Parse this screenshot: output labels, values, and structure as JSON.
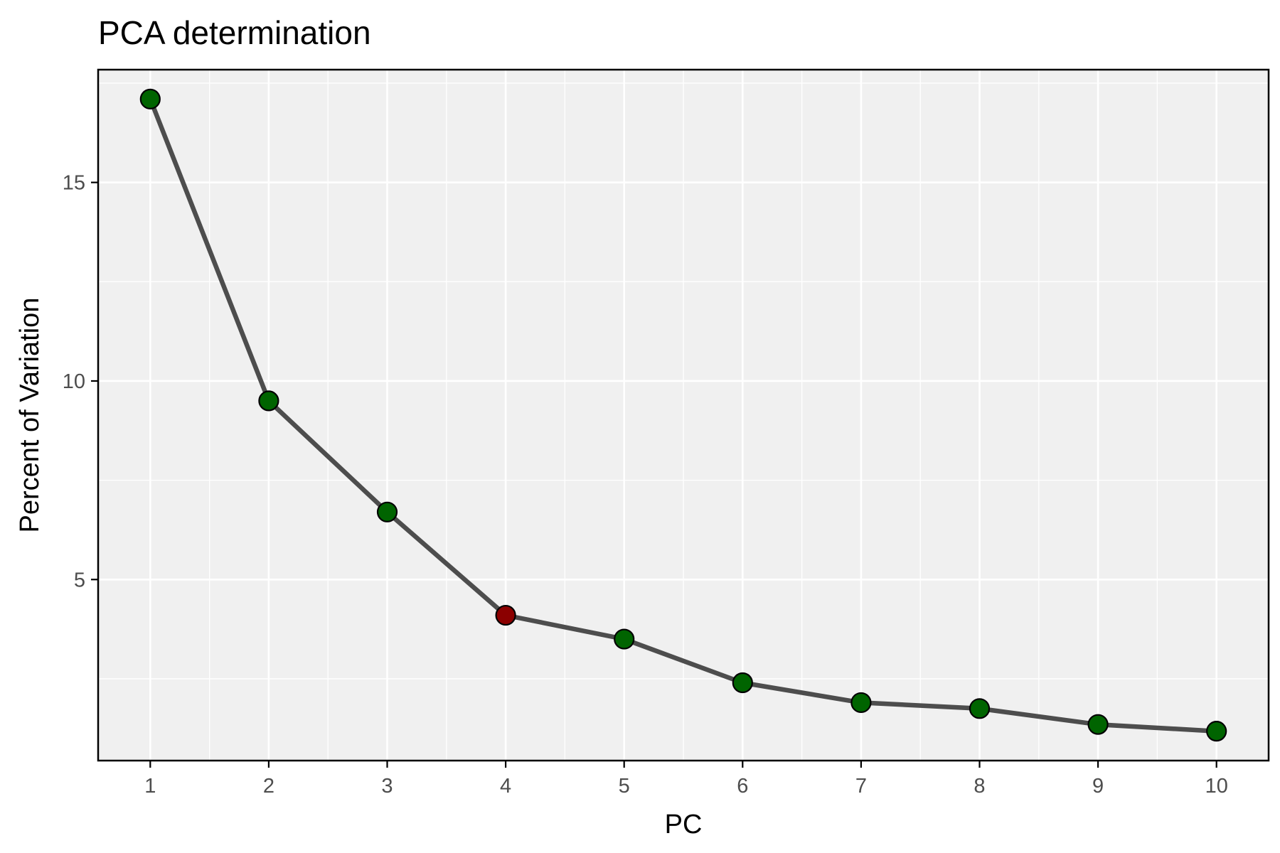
{
  "chart_data": {
    "type": "line",
    "title": "PCA determination",
    "xlabel": "PC",
    "ylabel": "Percent of Variation",
    "x": [
      1,
      2,
      3,
      4,
      5,
      6,
      7,
      8,
      9,
      10
    ],
    "values": [
      17.1,
      9.5,
      6.7,
      4.1,
      3.5,
      2.4,
      1.9,
      1.75,
      1.35,
      1.18
    ],
    "highlight_x": 4,
    "xlim": [
      0.56,
      10.44
    ],
    "ylim": [
      0.44,
      17.84
    ],
    "x_ticks": [
      1,
      2,
      3,
      4,
      5,
      6,
      7,
      8,
      9,
      10
    ],
    "y_ticks": [
      5,
      10,
      15
    ],
    "grid": true,
    "legend": "none",
    "colors": {
      "panel_background": "#f0f0f0",
      "grid": "#ffffff",
      "line": "#4d4d4d",
      "point_fill": "#006400",
      "point_highlight_fill": "#8b0000",
      "point_stroke": "#000000",
      "axis": "#000000",
      "tick_label": "#4d4d4d"
    }
  }
}
